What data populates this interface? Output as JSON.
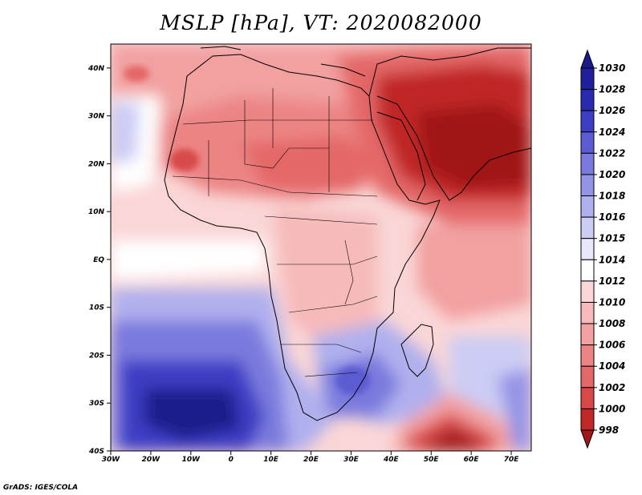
{
  "title": "MSLP [hPa], VT: 2020082000",
  "credit": "GrADS: IGES/COLA",
  "map": {
    "field": "Mean sea level pressure",
    "lon_range": [
      -30,
      75
    ],
    "lat_range": [
      -40,
      45
    ],
    "lat_labels": [
      "40N",
      "30N",
      "20N",
      "10N",
      "EQ",
      "10S",
      "20S",
      "30S",
      "40S"
    ],
    "lat_values": [
      40,
      30,
      20,
      10,
      0,
      -10,
      -20,
      -30,
      -40
    ],
    "lon_labels": [
      "30W",
      "20W",
      "10W",
      "0",
      "10E",
      "20E",
      "30E",
      "40E",
      "50E",
      "60E",
      "70E"
    ],
    "lon_values": [
      -30,
      -20,
      -10,
      0,
      10,
      20,
      30,
      40,
      50,
      60,
      70
    ]
  },
  "colorbar": {
    "levels": [
      "998",
      "1000",
      "1002",
      "1004",
      "1006",
      "1008",
      "1010",
      "1012",
      "1014",
      "1015",
      "1016",
      "1018",
      "1020",
      "1022",
      "1024",
      "1026",
      "1028",
      "1030"
    ],
    "colors": [
      "#a01818",
      "#c02828",
      "#d84848",
      "#e46868",
      "#ec8484",
      "#f2a0a0",
      "#f6baba",
      "#fad6d6",
      "#ffffff",
      "#e8e8fa",
      "#ccccf4",
      "#b0b0ee",
      "#9494e6",
      "#7a7ade",
      "#5c5cd2",
      "#3e3ec4",
      "#2a2ab0",
      "#20209c",
      "#1a1a8c"
    ]
  }
}
